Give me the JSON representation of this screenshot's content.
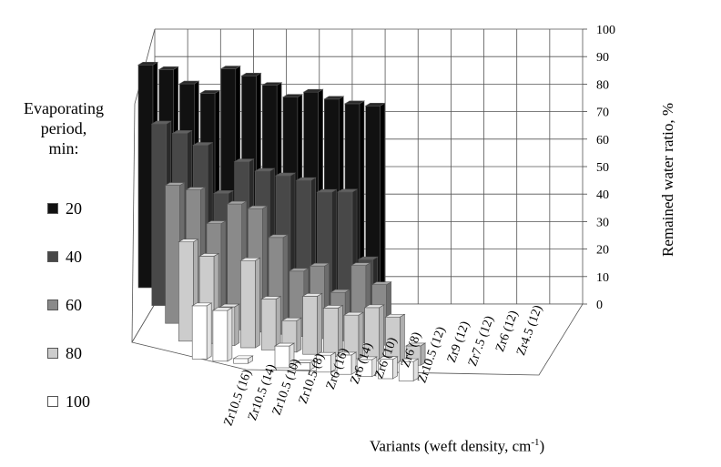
{
  "chart_data": {
    "type": "bar",
    "subtype": "3d-clustered",
    "ylabel": "Remained water ratio, %",
    "xlabel": "Variants (weft density, cm",
    "xlabel_superscript": "-1",
    "xlabel_suffix": ")",
    "legend_title": "Evaporating period, min:",
    "legend_title_lines": [
      "Evaporating",
      "period,",
      "min:"
    ],
    "legend_position": "left",
    "ylim": [
      0,
      100
    ],
    "yticks": [
      "0",
      "10",
      "20",
      "30",
      "40",
      "50",
      "60",
      "70",
      "80",
      "90",
      "100"
    ],
    "grid": true,
    "categories": [
      "Zr10.5 (16)",
      "Zr10.5 (14)",
      "Zr10.5 (10)",
      "Zr10.5 (8)",
      "Zr6 (16)",
      "Zr6 (14)",
      "Zr6 (10)",
      "Zr6 (8)",
      "Zr10.5 (12)",
      "Zr9 (12)",
      "Zr7.5 (12)",
      "Zr6 (12)",
      "Zr4.5 (12)"
    ],
    "series": [
      {
        "name": "20",
        "color": "#111111",
        "values": [
          92,
          91,
          86,
          83,
          94,
          92,
          89,
          85,
          88,
          86,
          85,
          85,
          0
        ]
      },
      {
        "name": "40",
        "color": "#484848",
        "values": [
          75,
          72,
          68,
          49,
          63,
          60,
          59,
          58,
          54,
          55,
          28,
          0,
          0
        ]
      },
      {
        "name": "60",
        "color": "#8a8a8a",
        "values": [
          57,
          56,
          43,
          52,
          51,
          40,
          27,
          30,
          20,
          32,
          25,
          0,
          0
        ]
      },
      {
        "name": "80",
        "color": "#cccccc",
        "values": [
          41,
          36,
          16,
          36,
          21,
          13,
          24,
          20,
          18,
          22,
          19,
          8,
          0
        ]
      },
      {
        "name": "100",
        "color": "#ffffff",
        "values": [
          22,
          21,
          2,
          0,
          9,
          3,
          7,
          8,
          7,
          8,
          8,
          0,
          0
        ]
      }
    ]
  }
}
